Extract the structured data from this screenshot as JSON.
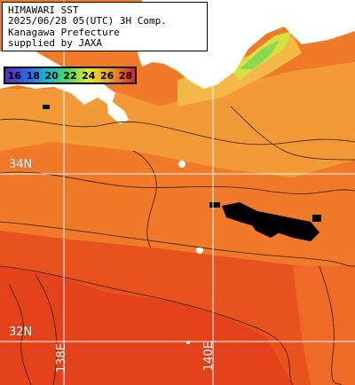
{
  "title": {
    "line1": "HIMAWARI SST",
    "line2": "2025/06/28 05(UTC) 3H Comp.",
    "line3": "Kanagawa Prefecture",
    "line4": "supplied by JAXA"
  },
  "scale": {
    "ticks": [
      "16",
      "18",
      "20",
      "22",
      "24",
      "26",
      "28"
    ],
    "tick_colors": [
      "#000000",
      "#000000",
      "#000000",
      "#000000",
      "#000000",
      "#000000",
      "#000000"
    ]
  },
  "grid_labels": {
    "lat_34": "34N",
    "lat_32": "32N",
    "lon_138": "138E",
    "lon_140": "140E"
  },
  "colors": {
    "land": "#ffffff",
    "cloud": "#000000",
    "warm_sea": "#e84a1e",
    "mid_sea": "#f07a2a",
    "cool_sea": "#f3a23a",
    "cold_sea": "#8ad852",
    "grid": "#ffffff"
  }
}
